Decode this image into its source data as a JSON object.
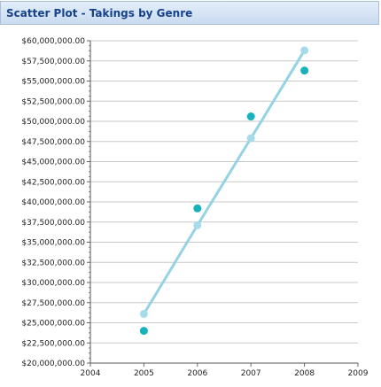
{
  "window": {
    "title": "Scatter Plot - Takings by Genre"
  },
  "chart_data": {
    "type": "scatter",
    "title": "Scatter Plot - Takings by Genre",
    "xlabel": "",
    "ylabel": "",
    "xlim": [
      2004,
      2009
    ],
    "ylim": [
      20000000,
      60000000
    ],
    "x_ticks": [
      "2004",
      "2005",
      "2006",
      "2007",
      "2008",
      "2009"
    ],
    "y_ticks": [
      "$20,000,000.00",
      "$22,500,000.00",
      "$25,000,000.00",
      "$27,500,000.00",
      "$30,000,000.00",
      "$32,500,000.00",
      "$35,000,000.00",
      "$37,500,000.00",
      "$40,000,000.00",
      "$42,500,000.00",
      "$45,000,000.00",
      "$47,500,000.00",
      "$50,000,000.00",
      "$52,500,000.00",
      "$55,000,000.00",
      "$57,500,000.00",
      "$60,000,000.00"
    ],
    "grid": "horizontal",
    "series": [
      {
        "color": "#17b2bc",
        "x": [
          2005,
          2006,
          2007,
          2008
        ],
        "y": [
          24000000,
          39200000,
          50600000,
          56300000
        ]
      },
      {
        "color": "#a6dbea",
        "line_color": "#93d3e4",
        "connected": true,
        "x": [
          2005,
          2006,
          2007,
          2008
        ],
        "y": [
          26100000,
          37100000,
          47900000,
          58800000
        ]
      }
    ]
  }
}
